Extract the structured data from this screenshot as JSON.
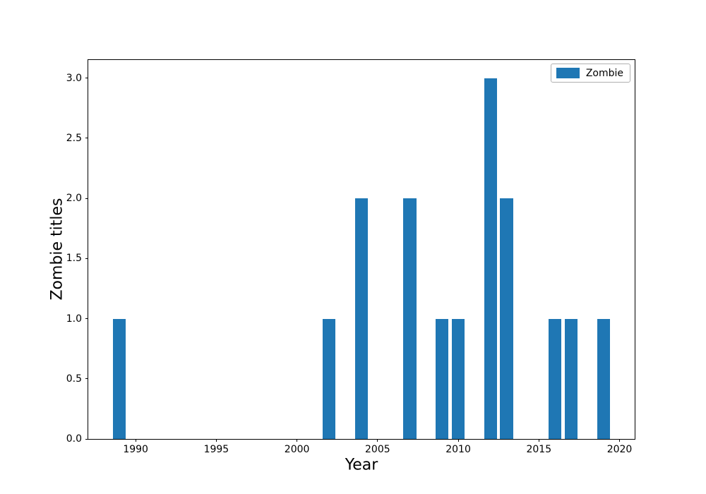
{
  "chart_data": {
    "type": "bar",
    "title": "",
    "xlabel": "Year",
    "ylabel": "Zombie titles",
    "x": [
      1989,
      2002,
      2004,
      2007,
      2009,
      2010,
      2012,
      2013,
      2016,
      2017,
      2019
    ],
    "values": [
      1,
      1,
      2,
      2,
      1,
      1,
      3,
      2,
      1,
      1,
      1
    ],
    "series_name": "Zombie",
    "bar_color": "#1f77b4",
    "bar_width_years": 0.8,
    "xlim": [
      1987.06,
      2020.94
    ],
    "ylim": [
      0,
      3.15
    ],
    "xticks": [
      1990,
      1995,
      2000,
      2005,
      2010,
      2015,
      2020
    ],
    "xtick_labels": [
      "1990",
      "1995",
      "2000",
      "2005",
      "2010",
      "2015",
      "2020"
    ],
    "yticks": [
      0.0,
      0.5,
      1.0,
      1.5,
      2.0,
      2.5,
      3.0
    ],
    "ytick_labels": [
      "0.0",
      "0.5",
      "1.0",
      "1.5",
      "2.0",
      "2.5",
      "3.0"
    ],
    "grid": false,
    "legend": {
      "label": "Zombie",
      "position": "upper right"
    }
  }
}
